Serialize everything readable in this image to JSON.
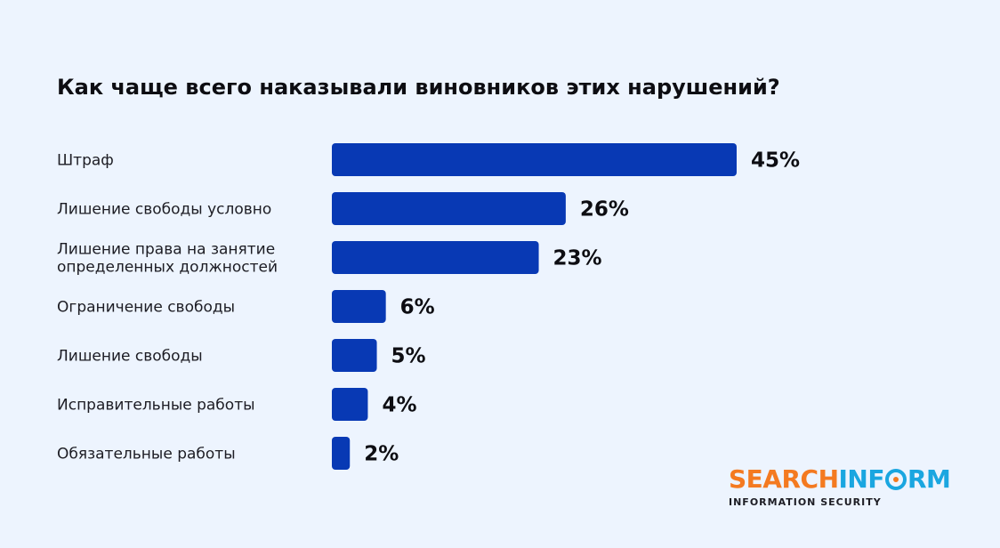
{
  "colors": {
    "background": "#EDF4FE",
    "bar": "#0839B4",
    "logo_orange": "#F47A20",
    "logo_blue": "#1AA6E0"
  },
  "chart_data": {
    "type": "bar",
    "orientation": "horizontal",
    "title": "Как чаще всего наказывали виновников этих нарушений?",
    "xlabel": "",
    "ylabel": "",
    "grid": false,
    "categories": [
      [
        "Штраф"
      ],
      [
        "Лишение свободы условно"
      ],
      [
        "Лишение права на занятие",
        "определенных должностей"
      ],
      [
        "Ограничение свободы"
      ],
      [
        "Лишение свободы"
      ],
      [
        "Исправительные работы"
      ],
      [
        "Обязательные работы"
      ]
    ],
    "values": [
      45,
      26,
      23,
      6,
      5,
      4,
      2
    ],
    "value_labels": [
      "45%",
      "26%",
      "23%",
      "6%",
      "5%",
      "4%",
      "2%"
    ],
    "xlim": [
      0,
      45
    ]
  },
  "logo": {
    "word_left": "SEARCHINF",
    "word_o": "O",
    "word_right": "RM",
    "tagline": "INFORMATION SECURITY"
  }
}
